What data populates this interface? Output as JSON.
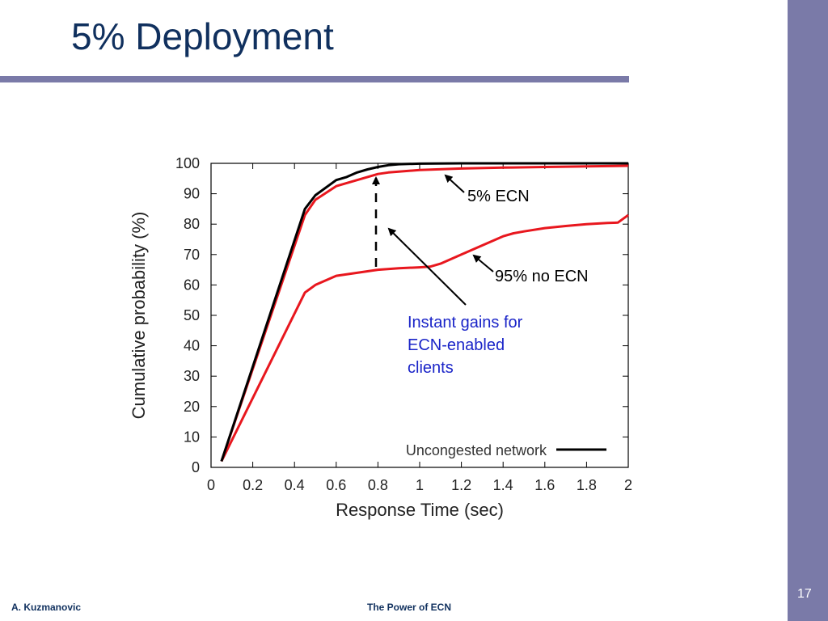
{
  "slide": {
    "title": "5% Deployment",
    "author": "A. Kuzmanovic",
    "footer_title": "The Power of ECN",
    "page_number": "17",
    "colors": {
      "title": "#10305e",
      "accent_bar": "#7a7aa8",
      "annotation_blue": "#1a24c8"
    }
  },
  "chart_data": {
    "type": "line",
    "xlabel": "Response Time (sec)",
    "ylabel": "Cumulative probability (%)",
    "xlim": [
      0,
      2
    ],
    "ylim": [
      0,
      100
    ],
    "xticks": [
      "0",
      "0.2",
      "0.4",
      "0.6",
      "0.8",
      "1",
      "1.2",
      "1.4",
      "1.6",
      "1.8",
      "2"
    ],
    "yticks": [
      "0",
      "10",
      "20",
      "30",
      "40",
      "50",
      "60",
      "70",
      "80",
      "90",
      "100"
    ],
    "grid": false,
    "legend": {
      "position": "bottom-right",
      "entries": [
        {
          "label": "Uncongested network",
          "color": "#000000"
        }
      ]
    },
    "series": [
      {
        "name": "Uncongested network",
        "color": "#000000",
        "x": [
          0.05,
          0.45,
          0.5,
          0.6,
          0.65,
          0.7,
          0.75,
          0.8,
          0.85,
          0.9,
          1.0,
          1.2,
          1.5,
          2.0
        ],
        "y": [
          2,
          85,
          89.5,
          94.5,
          95.5,
          97,
          98,
          98.8,
          99.4,
          99.7,
          99.9,
          100,
          100,
          100
        ]
      },
      {
        "name": "5% ECN",
        "color": "#e8171e",
        "x": [
          0.05,
          0.45,
          0.5,
          0.6,
          0.65,
          0.7,
          0.75,
          0.8,
          0.85,
          0.9,
          1.0,
          1.2,
          1.4,
          1.6,
          1.8,
          2.0
        ],
        "y": [
          2,
          83,
          88,
          92.5,
          93.5,
          94.5,
          95.5,
          96.5,
          97,
          97.3,
          97.8,
          98.3,
          98.6,
          98.8,
          99,
          99.2
        ]
      },
      {
        "name": "95% no ECN",
        "color": "#e8171e",
        "x": [
          0.05,
          0.45,
          0.5,
          0.6,
          0.7,
          0.8,
          0.9,
          1.0,
          1.05,
          1.1,
          1.2,
          1.3,
          1.4,
          1.45,
          1.5,
          1.6,
          1.7,
          1.8,
          1.9,
          1.95,
          2.0
        ],
        "y": [
          2,
          57.5,
          60,
          63,
          64,
          65,
          65.5,
          65.8,
          66,
          67,
          70,
          73,
          76,
          77,
          77.6,
          78.7,
          79.4,
          80,
          80.4,
          80.5,
          83
        ]
      }
    ],
    "annotations": [
      {
        "text": "5% ECN"
      },
      {
        "text": "95% no ECN"
      },
      {
        "lines": [
          "Instant gains for",
          "ECN-enabled",
          "clients"
        ]
      }
    ]
  }
}
